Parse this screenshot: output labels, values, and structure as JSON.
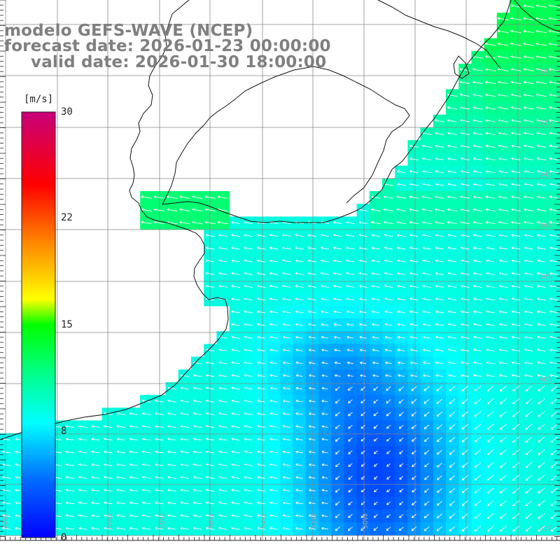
{
  "title": {
    "model": "modelo GEFS-WAVE (NCEP)",
    "forecast": "forecast date: 2026-01-23 00:00:00",
    "valid": "valid date: 2026-01-30 18:00:00"
  },
  "colorbar": {
    "unit": "[m/s]",
    "ticks": [
      {
        "value": 30,
        "label": "30"
      },
      {
        "value": 22,
        "label": "22"
      },
      {
        "value": 15,
        "label": "15"
      },
      {
        "value": 8,
        "label": "8"
      },
      {
        "value": 0,
        "label": "0"
      }
    ],
    "range": [
      0,
      30
    ],
    "colors": [
      "#0000ff",
      "#00a0ff",
      "#00ffff",
      "#00ff00",
      "#ffff00",
      "#ff8000",
      "#ff0000",
      "#c8007a"
    ]
  },
  "map": {
    "region": "South Atlantic - Rio de la Plata / Uruguay / southern Brazil coast",
    "longitude_labels": [
      "62W",
      "60W",
      "58W",
      "56W",
      "54W",
      "52W",
      "50W"
    ],
    "latitude_labels": [
      "30S",
      "32S",
      "34S",
      "36S",
      "38S",
      "40S",
      "41S"
    ],
    "wind_direction": "mostly from east/northeast (arrows pointing west/southwest)",
    "max_intensity_region": "green band along Brazilian coast (~12-14 m/s)",
    "min_intensity_region": "dark blue core near 54W 40S (~1-3 m/s)"
  }
}
